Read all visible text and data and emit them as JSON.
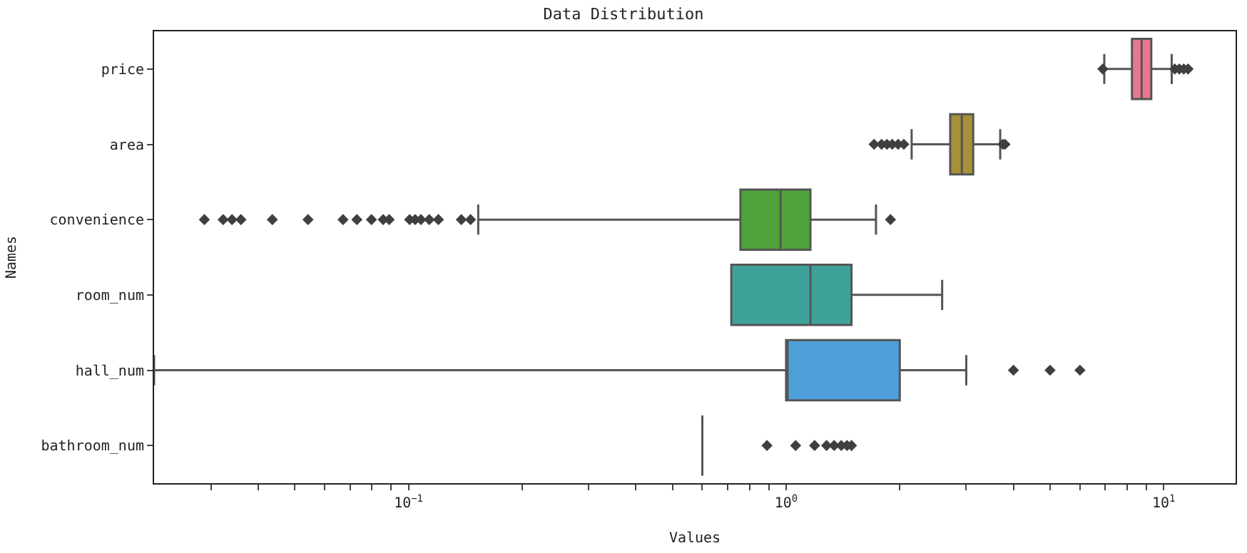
{
  "chart_data": {
    "type": "box",
    "orientation": "horizontal",
    "title": "Data Distribution",
    "xlabel": "Values",
    "ylabel": "Names",
    "categories": [
      "price",
      "area",
      "convenience",
      "room_num",
      "hall_num",
      "bathroom_num"
    ],
    "colors": [
      "#e8778f",
      "#a8903a",
      "#4ea33a",
      "#3da39a",
      "#4f9fda",
      "#555555"
    ],
    "boxes": [
      {
        "low": 6.96,
        "q1": 8.24,
        "median": 8.74,
        "q3": 9.27,
        "high": 10.5,
        "outliers": [
          6.9,
          10.7,
          11.0,
          11.3,
          11.6
        ]
      },
      {
        "low": 2.15,
        "q1": 2.72,
        "median": 2.92,
        "q3": 3.13,
        "high": 3.69,
        "outliers": [
          1.71,
          1.79,
          1.85,
          1.91,
          1.98,
          2.05,
          3.75,
          3.8
        ]
      },
      {
        "low": 0.153,
        "q1": 0.757,
        "median": 0.967,
        "q3": 1.16,
        "high": 1.73,
        "outliers": [
          0.0288,
          0.0323,
          0.0341,
          0.036,
          0.0436,
          0.0542,
          0.0671,
          0.073,
          0.0798,
          0.0857,
          0.0889,
          0.1007,
          0.1042,
          0.1079,
          0.1135,
          0.12,
          0.138,
          0.146,
          1.89
        ]
      },
      {
        "low": 0.716,
        "q1": 0.716,
        "median": 1.16,
        "q3": 1.49,
        "high": 2.59
      },
      {
        "low": 0.0212,
        "q1": 1.0,
        "median": 1.0,
        "q3": 2.0,
        "high": 3.0,
        "outliers": [
          4.0,
          5.0,
          6.0
        ]
      },
      {
        "low": 0.6,
        "q1": 0.6,
        "median": 0.6,
        "q3": 0.6,
        "high": 0.6,
        "outliers": [
          0.89,
          1.06,
          1.19,
          1.28,
          1.34,
          1.4,
          1.45,
          1.49
        ]
      }
    ],
    "log": "x",
    "xlim": [
      0.0212,
      15.5
    ],
    "xticks": [
      {
        "value": 0.03,
        "label": null
      },
      {
        "value": 0.04,
        "label": null
      },
      {
        "value": 0.05,
        "label": null
      },
      {
        "value": 0.06,
        "label": null
      },
      {
        "value": 0.07,
        "label": null
      },
      {
        "value": 0.08,
        "label": null
      },
      {
        "value": 0.09,
        "label": null
      },
      {
        "value": 0.1,
        "label": "10$^{−1}$"
      },
      {
        "value": 0.2,
        "label": null
      },
      {
        "value": 0.3,
        "label": null
      },
      {
        "value": 0.4,
        "label": null
      },
      {
        "value": 0.5,
        "label": null
      },
      {
        "value": 0.6,
        "label": null
      },
      {
        "value": 0.7,
        "label": null
      },
      {
        "value": 0.8,
        "label": null
      },
      {
        "value": 0.9,
        "label": null
      },
      {
        "value": 1,
        "label": "10$^{0}$"
      },
      {
        "value": 2,
        "label": null
      },
      {
        "value": 3,
        "label": null
      },
      {
        "value": 4,
        "label": null
      },
      {
        "value": 5,
        "label": null
      },
      {
        "value": 6,
        "label": null
      },
      {
        "value": 7,
        "label": null
      },
      {
        "value": 8,
        "label": null
      },
      {
        "value": 9,
        "label": null
      },
      {
        "value": 10,
        "label": "10$^{1}$"
      }
    ],
    "marker": "diamond"
  }
}
